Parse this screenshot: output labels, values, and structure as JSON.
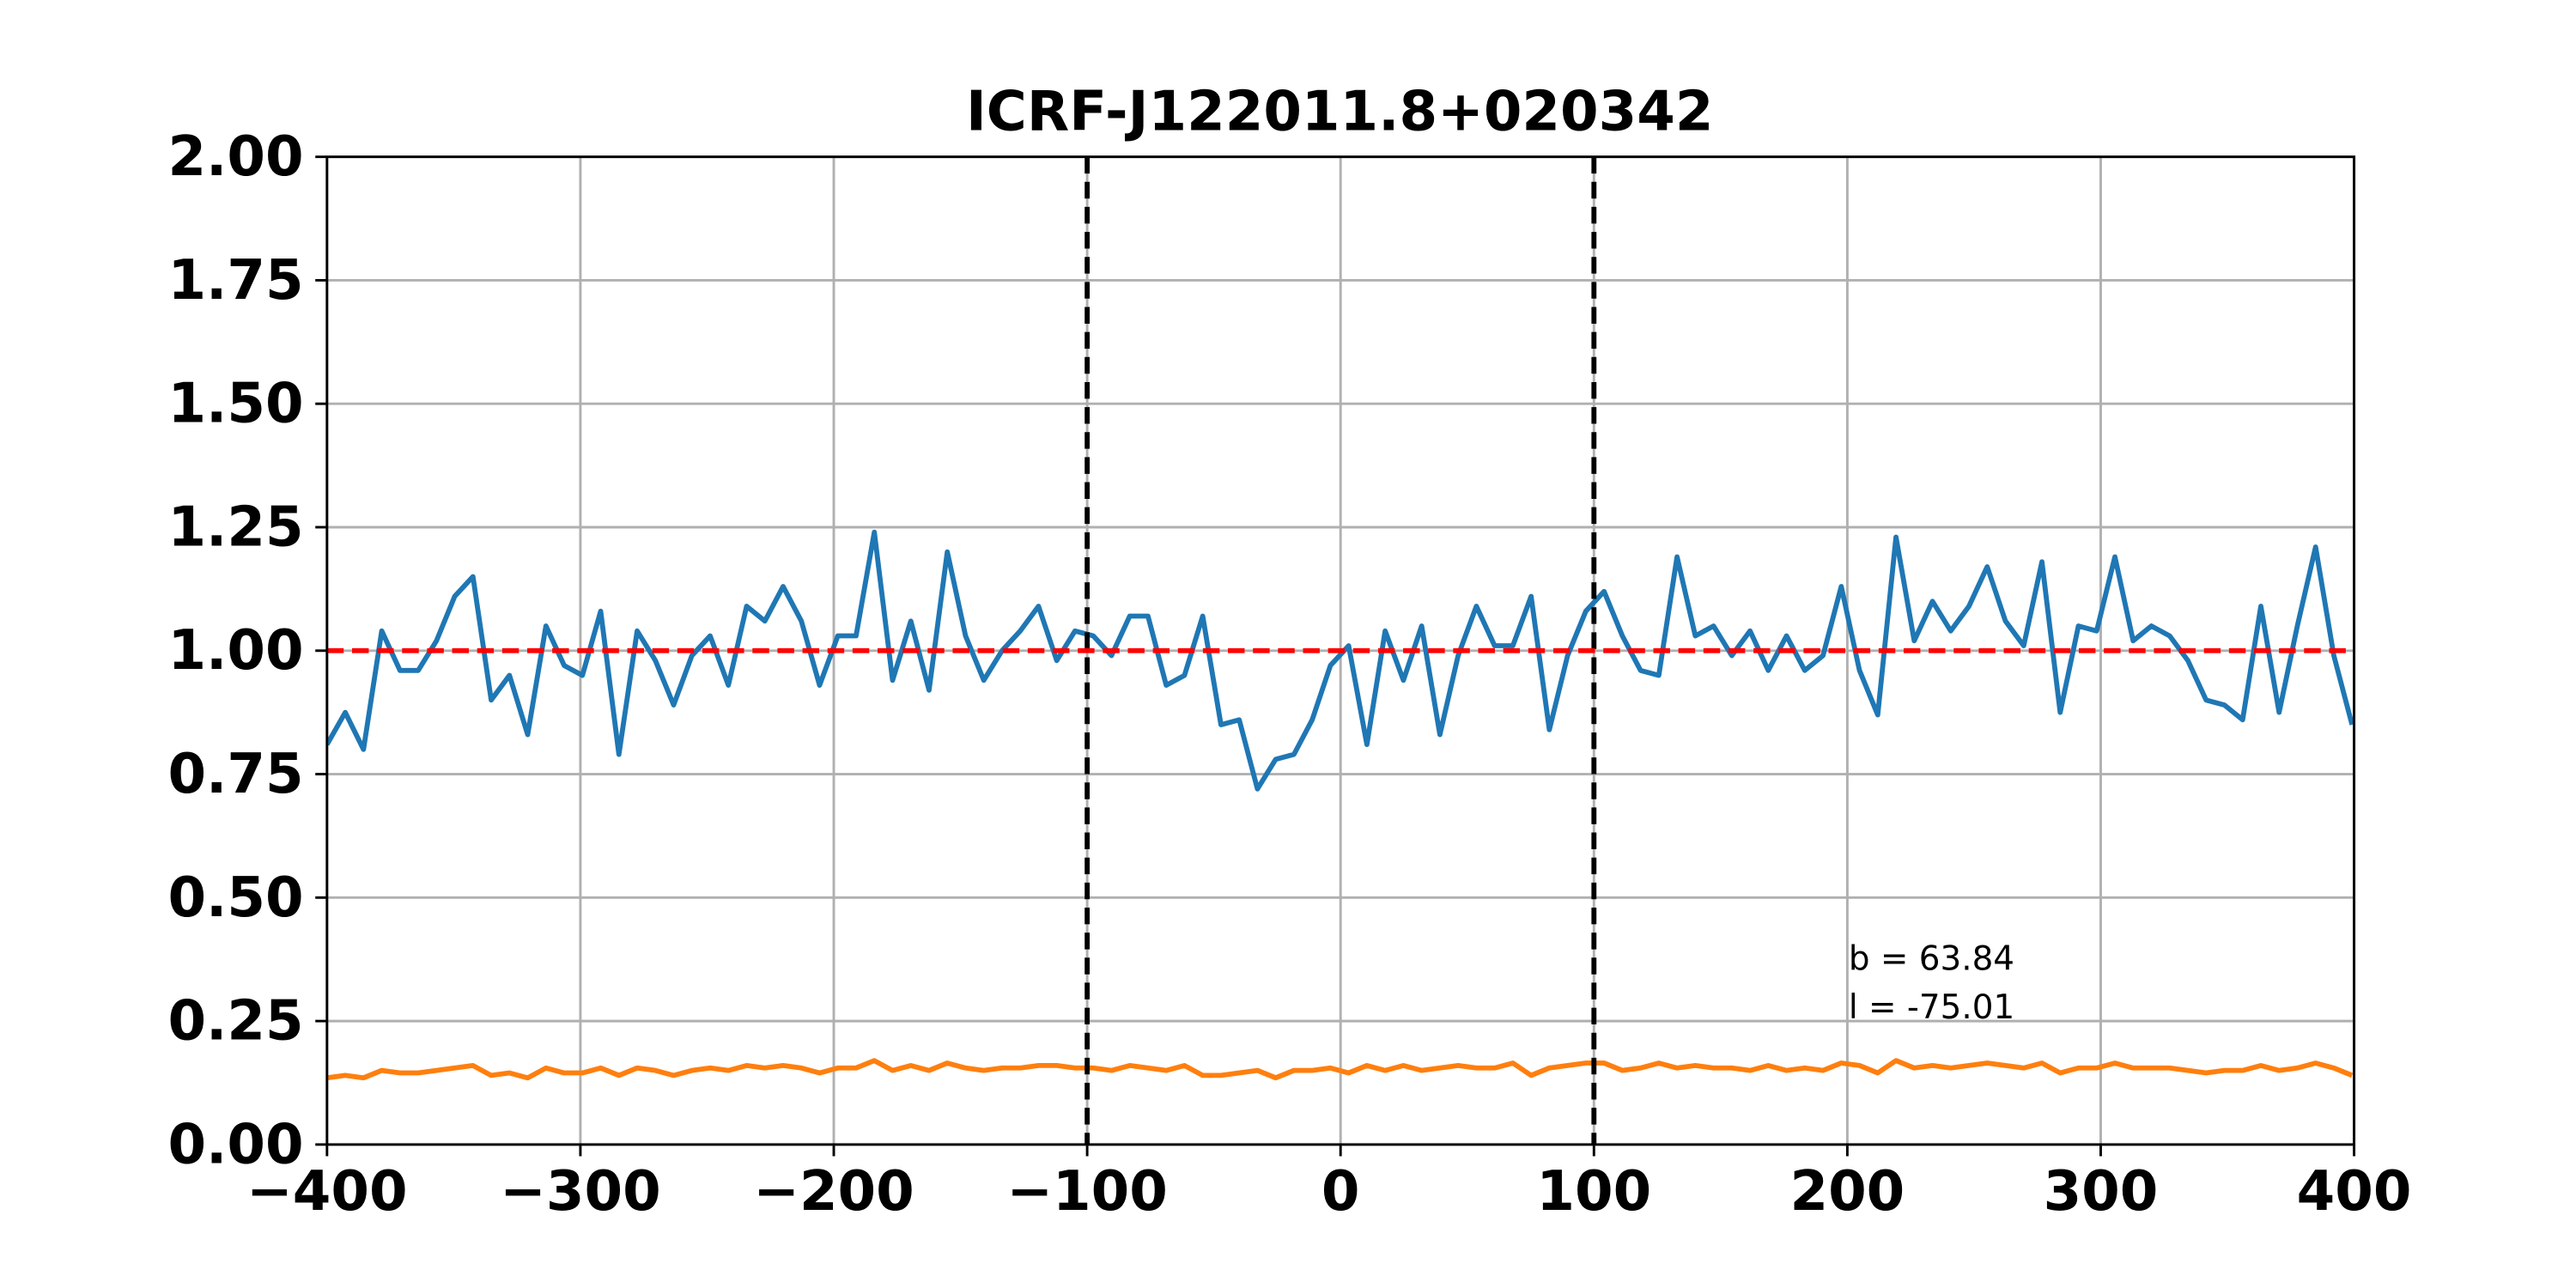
{
  "chart_data": {
    "type": "line",
    "title": "ICRF-J122011.8+020342",
    "x": [
      -400,
      -392.8,
      -385.6,
      -378.4,
      -371.2,
      -364,
      -356.8,
      -349.6,
      -342.4,
      -335.2,
      -328,
      -320.8,
      -313.6,
      -306.4,
      -299.2,
      -292,
      -284.8,
      -277.6,
      -270.4,
      -263.2,
      -256,
      -248.8,
      -241.6,
      -234.4,
      -227.2,
      -220,
      -212.8,
      -205.6,
      -198.4,
      -191.2,
      -184,
      -176.8,
      -169.6,
      -162.4,
      -155.2,
      -148,
      -140.8,
      -133.6,
      -126.4,
      -119.2,
      -112,
      -104.8,
      -97.6,
      -90.4,
      -83.2,
      -76,
      -68.8,
      -61.6,
      -54.4,
      -47.2,
      -40,
      -32.8,
      -25.6,
      -18.4,
      -11.2,
      -4,
      3.2,
      10.4,
      17.6,
      24.8,
      32,
      39.2,
      46.4,
      53.6,
      60.8,
      68,
      75.2,
      82.4,
      89.6,
      96.8,
      104,
      111.2,
      118.4,
      125.6,
      132.8,
      140,
      147.2,
      154.4,
      161.6,
      168.8,
      176,
      183.2,
      190.4,
      197.6,
      204.8,
      212,
      219.2,
      226.4,
      233.6,
      240.8,
      248,
      255.2,
      262.4,
      269.6,
      276.8,
      284,
      291.2,
      298.4,
      305.6,
      312.8,
      320,
      327.2,
      334.4,
      341.6,
      348.8,
      356,
      363.2,
      370.4,
      377.6,
      384.8,
      392,
      399.2
    ],
    "series": [
      {
        "color": "#1f77b4",
        "values": [
          0.81,
          0.875,
          0.8,
          1.04,
          0.96,
          0.96,
          1.02,
          1.11,
          1.15,
          0.9,
          0.95,
          0.83,
          1.05,
          0.97,
          0.95,
          1.08,
          0.79,
          1.04,
          0.98,
          0.89,
          0.99,
          1.03,
          0.93,
          1.09,
          1.06,
          1.13,
          1.06,
          0.93,
          1.03,
          1.03,
          1.24,
          0.94,
          1.06,
          0.92,
          1.2,
          1.03,
          0.94,
          1.0,
          1.04,
          1.09,
          0.98,
          1.04,
          1.03,
          0.99,
          1.07,
          1.07,
          0.93,
          0.95,
          1.07,
          0.85,
          0.86,
          0.72,
          0.78,
          0.79,
          0.86,
          0.97,
          1.01,
          0.81,
          1.04,
          0.94,
          1.05,
          0.83,
          0.99,
          1.09,
          1.01,
          1.01,
          1.11,
          0.84,
          0.99,
          1.08,
          1.12,
          1.03,
          0.96,
          0.95,
          1.19,
          1.03,
          1.05,
          0.99,
          1.04,
          0.96,
          1.03,
          0.96,
          0.99,
          1.13,
          0.96,
          0.87,
          1.23,
          1.02,
          1.1,
          1.04,
          1.09,
          1.17,
          1.06,
          1.01,
          1.18,
          0.875,
          1.05,
          1.04,
          1.19,
          1.02,
          1.05,
          1.03,
          0.98,
          0.9,
          0.89,
          0.86,
          1.09,
          0.875,
          1.05,
          1.21,
          0.99,
          0.85
        ]
      },
      {
        "color": "#ff7f0e",
        "values": [
          0.135,
          0.14,
          0.135,
          0.15,
          0.145,
          0.145,
          0.15,
          0.155,
          0.16,
          0.14,
          0.145,
          0.135,
          0.155,
          0.145,
          0.145,
          0.155,
          0.14,
          0.155,
          0.15,
          0.14,
          0.15,
          0.155,
          0.15,
          0.16,
          0.155,
          0.16,
          0.155,
          0.145,
          0.155,
          0.155,
          0.17,
          0.15,
          0.16,
          0.15,
          0.165,
          0.155,
          0.15,
          0.155,
          0.155,
          0.16,
          0.16,
          0.155,
          0.155,
          0.15,
          0.16,
          0.155,
          0.15,
          0.16,
          0.14,
          0.14,
          0.145,
          0.15,
          0.135,
          0.15,
          0.15,
          0.155,
          0.145,
          0.16,
          0.15,
          0.16,
          0.15,
          0.155,
          0.16,
          0.155,
          0.155,
          0.165,
          0.14,
          0.155,
          0.16,
          0.165,
          0.165,
          0.15,
          0.155,
          0.165,
          0.155,
          0.16,
          0.155,
          0.155,
          0.15,
          0.16,
          0.15,
          0.155,
          0.15,
          0.165,
          0.16,
          0.145,
          0.17,
          0.155,
          0.16,
          0.155,
          0.16,
          0.165,
          0.16,
          0.155,
          0.165,
          0.145,
          0.155,
          0.155,
          0.165,
          0.155,
          0.155,
          0.155,
          0.15,
          0.145,
          0.15,
          0.15,
          0.16,
          0.15,
          0.155,
          0.165,
          0.155,
          0.14
        ]
      }
    ],
    "hline": {
      "value": 1,
      "color": "#ff0000"
    },
    "vlines": {
      "values": [
        -100,
        100
      ],
      "color": "#000000"
    },
    "annotations": [
      "b = 63.84",
      "l = -75.01"
    ],
    "xlim": [
      -400,
      400
    ],
    "ylim": [
      0,
      2
    ],
    "xticks": [
      {
        "value": -400,
        "label": "−400"
      },
      {
        "value": -300,
        "label": "−300"
      },
      {
        "value": -200,
        "label": "−200"
      },
      {
        "value": -100,
        "label": "−100"
      },
      0,
      100,
      200,
      300,
      400
    ],
    "yticks": [
      {
        "value": 0,
        "label": "0.00"
      },
      {
        "value": 0.25,
        "label": "0.25"
      },
      {
        "value": 0.5,
        "label": "0.50"
      },
      {
        "value": 0.75,
        "label": "0.75"
      },
      {
        "value": 1,
        "label": "1.00"
      },
      {
        "value": 1.25,
        "label": "1.25"
      },
      {
        "value": 1.5,
        "label": "1.50"
      },
      {
        "value": 1.75,
        "label": "1.75"
      },
      {
        "value": 2,
        "label": "2.00"
      }
    ],
    "grid": true
  }
}
